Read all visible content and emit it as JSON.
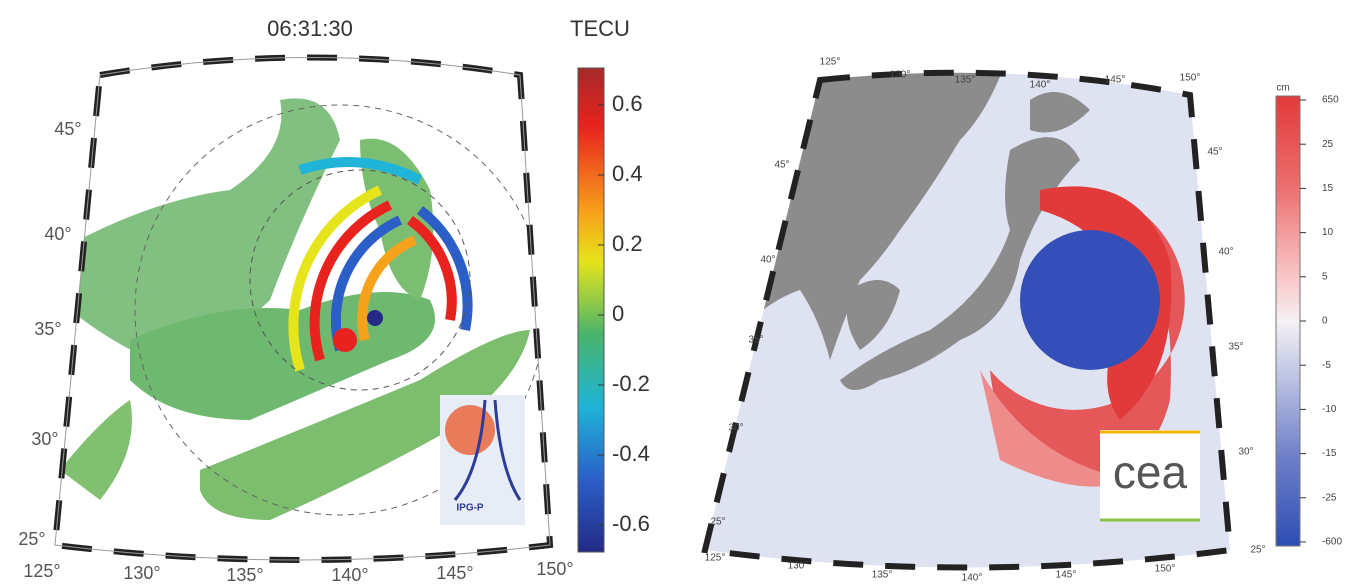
{
  "left_map": {
    "time": "06:31:30",
    "colorbar": {
      "unit": "TECU",
      "ticks": [
        0.6,
        0.4,
        0.2,
        0,
        -0.2,
        -0.4,
        -0.6
      ]
    },
    "lat_labels": [
      "45°",
      "40°",
      "35°",
      "30°",
      "25°"
    ],
    "lon_labels": [
      "125°",
      "130°",
      "135°",
      "140°",
      "145°",
      "150°"
    ],
    "logo": "IPG-P"
  },
  "right_map": {
    "colorbar": {
      "unit": "cm",
      "ticks": [
        650,
        25,
        15,
        10,
        5,
        0,
        -5,
        -10,
        -15,
        -25,
        -600
      ]
    },
    "lat_labels_left": [
      "45°",
      "40°",
      "35°",
      "30°",
      "25°"
    ],
    "lat_labels_right": [
      "45°",
      "40°",
      "35°",
      "30°",
      "25°"
    ],
    "lon_labels_top": [
      "125°",
      "130°",
      "135°",
      "140°",
      "145°",
      "150°"
    ],
    "lon_labels_bottom": [
      "125°",
      "130°",
      "135°",
      "140°",
      "145°",
      "150°"
    ],
    "logo": "cea"
  }
}
